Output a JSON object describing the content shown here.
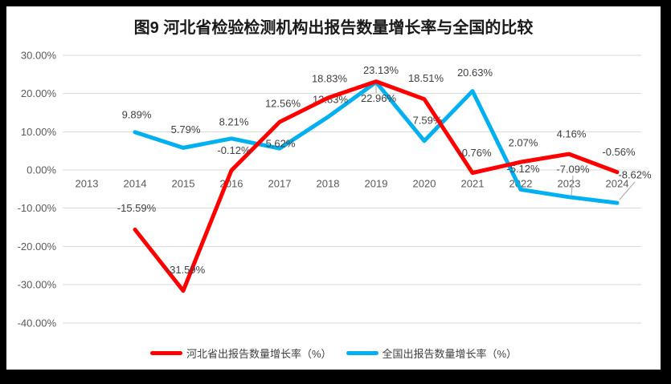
{
  "window": {
    "frame_background": "#000000",
    "canvas_background": "#ffffff"
  },
  "colors": {
    "gridline": "#D9D9D9",
    "axis_text": "#595959",
    "data_label_text": "#404040",
    "leader_line": "#A6A6A6",
    "title_text": "#1a1a1a"
  },
  "chart_data": {
    "type": "line",
    "title": "图9 河北省检验检测机构出报告数量增长率与全国的比较",
    "categories": [
      "2013",
      "2014",
      "2015",
      "2016",
      "2017",
      "2018",
      "2019",
      "2020",
      "2021",
      "2022",
      "2023",
      "2024"
    ],
    "series": [
      {
        "name": "河北省出报告数量增长率（%）",
        "color": "#FF0000",
        "values": [
          null,
          -15.59,
          -31.59,
          -0.12,
          12.56,
          18.83,
          23.13,
          18.51,
          -0.76,
          2.07,
          4.16,
          -0.56
        ],
        "data_labels": [
          null,
          "-15.59%",
          "-31.59%",
          "-0.12%",
          "12.56%",
          "18.83%",
          "23.13%",
          "18.51%",
          "-0.76%",
          "2.07%",
          "4.16%",
          "-0.56%"
        ]
      },
      {
        "name": "全国出报告数量增长率（%）",
        "color": "#00B0F0",
        "values": [
          null,
          9.89,
          5.79,
          8.21,
          5.62,
          13.83,
          22.96,
          7.59,
          20.63,
          -5.12,
          -7.09,
          -8.62
        ],
        "data_labels": [
          null,
          "9.89%",
          "5.79%",
          "8.21%",
          "5.62%",
          "13.83%",
          "22.96%",
          "7.59%",
          "20.63%",
          "-5.12%",
          "-7.09%",
          "-8.62%"
        ]
      }
    ],
    "y_axis": {
      "max": 30,
      "min": -40,
      "step": 10,
      "tick_labels": [
        "30.00%",
        "20.00%",
        "10.00%",
        "0.00%",
        "-10.00%",
        "-20.00%",
        "-30.00%",
        "-40.00%"
      ]
    },
    "grid": true,
    "legend_position": "bottom",
    "label_format": "0.00%"
  }
}
